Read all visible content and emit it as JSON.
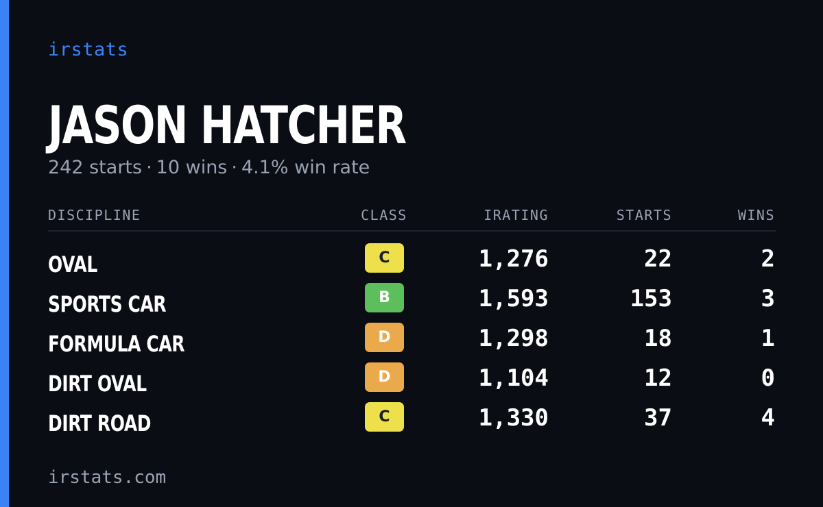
{
  "brand": "irstats",
  "driver": {
    "name": "JASON HATCHER",
    "starts_text": "242 starts",
    "wins_text": "10 wins",
    "win_rate_text": "4.1% win rate",
    "separator": "·"
  },
  "table": {
    "headers": {
      "discipline": "DISCIPLINE",
      "class": "CLASS",
      "irating": "IRATING",
      "starts": "STARTS",
      "wins": "WINS"
    },
    "rows": [
      {
        "discipline": "OVAL",
        "class": "C",
        "irating": "1,276",
        "starts": "22",
        "wins": "2"
      },
      {
        "discipline": "SPORTS CAR",
        "class": "B",
        "irating": "1,593",
        "starts": "153",
        "wins": "3"
      },
      {
        "discipline": "FORMULA CAR",
        "class": "D",
        "irating": "1,298",
        "starts": "18",
        "wins": "1"
      },
      {
        "discipline": "DIRT OVAL",
        "class": "D",
        "irating": "1,104",
        "starts": "12",
        "wins": "0"
      },
      {
        "discipline": "DIRT ROAD",
        "class": "C",
        "irating": "1,330",
        "starts": "37",
        "wins": "4"
      }
    ]
  },
  "footer": "irstats.com",
  "colors": {
    "background": "#0a0d14",
    "accent": "#3b82f6",
    "muted_text": "#9aa3b2",
    "class_c": "#ede04a",
    "class_b": "#5cbf5c",
    "class_d": "#eaa94a"
  }
}
